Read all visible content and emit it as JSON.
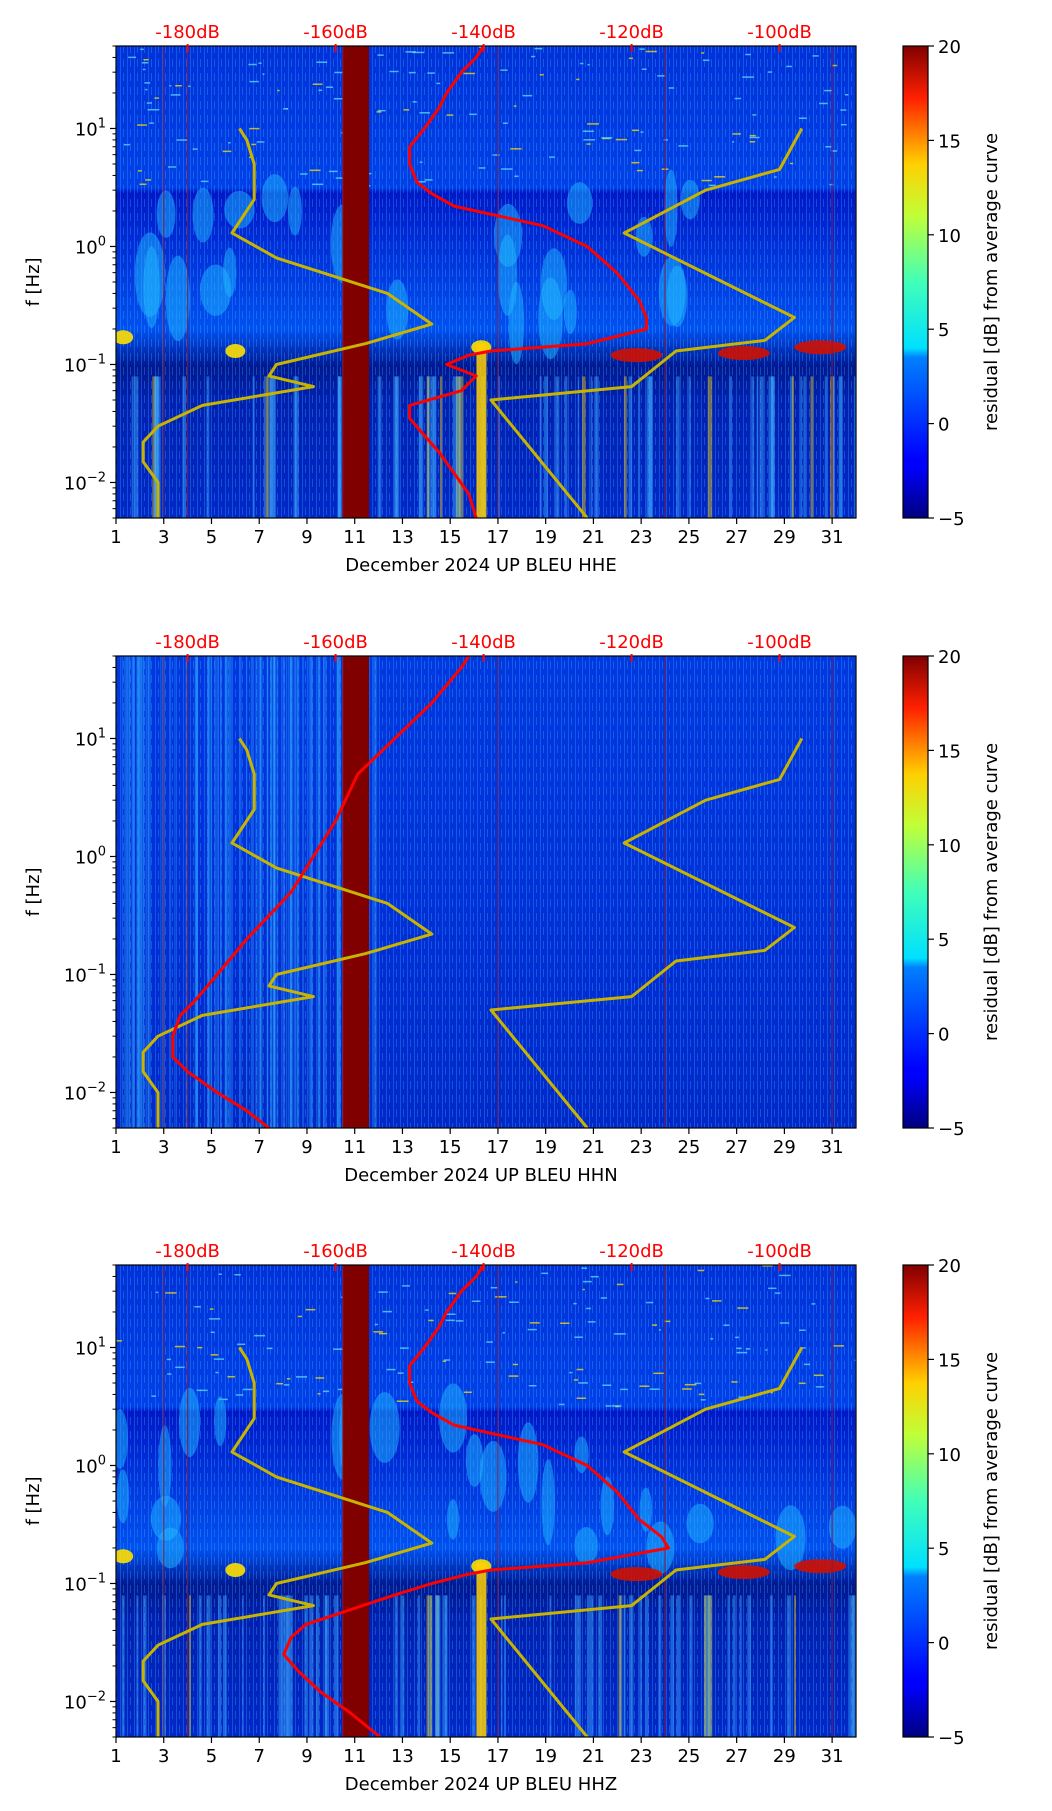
{
  "chart_data": [
    {
      "type": "heatmap",
      "xlabel": "December 2024 UP BLEU  HHE",
      "ylabel": "f [Hz]",
      "x_ticks": [
        "1",
        "3",
        "5",
        "7",
        "9",
        "11",
        "13",
        "15",
        "17",
        "19",
        "21",
        "23",
        "25",
        "27",
        "29",
        "31"
      ],
      "y_ticks": [
        "10^-2",
        "10^-1",
        "10^0",
        "10^1"
      ],
      "top_ticks": [
        "-180dB",
        "-160dB",
        "-140dB",
        "-120dB",
        "-100dB"
      ],
      "colorbar_label": "residual [dB] from average curve",
      "colorbar_ticks": [
        "−5",
        "0",
        "5",
        "10",
        "15",
        "20"
      ],
      "clim": [
        -5,
        20
      ],
      "ylim_hz": [
        0.005,
        50
      ],
      "xlim_days": [
        1,
        32
      ],
      "gap_days": [
        10.5,
        11.6
      ],
      "psd_curve": {
        "color": "#ff0000",
        "freq": [
          50,
          40,
          30,
          20,
          15,
          10,
          7,
          5,
          3.5,
          2.8,
          2.2,
          1.5,
          1.0,
          0.6,
          0.35,
          0.25,
          0.2,
          0.15,
          0.13,
          0.12,
          0.1,
          0.08,
          0.06,
          0.045,
          0.035,
          0.025,
          0.018,
          0.012,
          0.008,
          0.005
        ],
        "db": [
          -140,
          -141,
          -143,
          -145,
          -146,
          -148,
          -150,
          -150,
          -149,
          -147,
          -144,
          -132,
          -126,
          -122,
          -119,
          -118,
          -118,
          -126,
          -139,
          -142,
          -145,
          -141,
          -143,
          -150,
          -150,
          -148,
          -146,
          -144,
          -142,
          -141
        ]
      },
      "nlnm_curve": {
        "color": "#c8b400",
        "freq": [
          10,
          8,
          5,
          3.5,
          2.5,
          1.3,
          0.8,
          0.4,
          0.22,
          0.15,
          0.1,
          0.08,
          0.065,
          0.045,
          0.03,
          0.022,
          0.015,
          0.01,
          0.007,
          0.005
        ],
        "db": [
          -173,
          -172,
          -171,
          -171,
          -171,
          -174,
          -168,
          -153,
          -147,
          -156,
          -168,
          -169,
          -163,
          -178,
          -184,
          -186,
          -186,
          -184,
          -184,
          -184
        ]
      },
      "nhnm_curve": {
        "color": "#c8b400",
        "freq": [
          10,
          4.5,
          3.0,
          1.3,
          0.25,
          0.16,
          0.13,
          0.065,
          0.05,
          0.005
        ],
        "db": [
          -97,
          -100,
          -110,
          -121,
          -98,
          -102,
          -114,
          -120,
          -139,
          -126
        ]
      }
    },
    {
      "type": "heatmap",
      "xlabel": "December 2024 UP BLEU  HHN",
      "ylabel": "f [Hz]",
      "x_ticks": [
        "1",
        "3",
        "5",
        "7",
        "9",
        "11",
        "13",
        "15",
        "17",
        "19",
        "21",
        "23",
        "25",
        "27",
        "29",
        "31"
      ],
      "y_ticks": [
        "10^-2",
        "10^-1",
        "10^0",
        "10^1"
      ],
      "top_ticks": [
        "-180dB",
        "-160dB",
        "-140dB",
        "-120dB",
        "-100dB"
      ],
      "colorbar_label": "residual [dB] from average curve",
      "colorbar_ticks": [
        "−5",
        "0",
        "5",
        "10",
        "15",
        "20"
      ],
      "clim": [
        -5,
        20
      ],
      "ylim_hz": [
        0.005,
        50
      ],
      "xlim_days": [
        1,
        32
      ],
      "gap_days": [
        10.5,
        11.6
      ],
      "psd_curve": {
        "color": "#ff0000",
        "freq": [
          50,
          40,
          20,
          10,
          5,
          2,
          1,
          0.5,
          0.2,
          0.1,
          0.06,
          0.045,
          0.03,
          0.02,
          0.015,
          0.01,
          0.007,
          0.005
        ],
        "db": [
          -142,
          -143,
          -147,
          -152,
          -157,
          -160,
          -163,
          -166,
          -172,
          -176,
          -179,
          -181,
          -182,
          -182,
          -180,
          -176,
          -172,
          -169
        ]
      },
      "nlnm_curve": {
        "color": "#c8b400",
        "freq": [
          10,
          8,
          5,
          3.5,
          2.5,
          1.3,
          0.8,
          0.4,
          0.22,
          0.15,
          0.1,
          0.08,
          0.065,
          0.045,
          0.03,
          0.022,
          0.015,
          0.01,
          0.007,
          0.005
        ],
        "db": [
          -173,
          -172,
          -171,
          -171,
          -171,
          -174,
          -168,
          -153,
          -147,
          -156,
          -168,
          -169,
          -163,
          -178,
          -184,
          -186,
          -186,
          -184,
          -184,
          -184
        ]
      },
      "nhnm_curve": {
        "color": "#c8b400",
        "freq": [
          10,
          4.5,
          3.0,
          1.3,
          0.25,
          0.16,
          0.13,
          0.065,
          0.05,
          0.005
        ],
        "db": [
          -97,
          -100,
          -110,
          -121,
          -98,
          -102,
          -114,
          -120,
          -139,
          -126
        ]
      }
    },
    {
      "type": "heatmap",
      "xlabel": "December 2024 UP BLEU  HHZ",
      "ylabel": "f [Hz]",
      "x_ticks": [
        "1",
        "3",
        "5",
        "7",
        "9",
        "11",
        "13",
        "15",
        "17",
        "19",
        "21",
        "23",
        "25",
        "27",
        "29",
        "31"
      ],
      "y_ticks": [
        "10^-2",
        "10^-1",
        "10^0",
        "10^1"
      ],
      "top_ticks": [
        "-180dB",
        "-160dB",
        "-140dB",
        "-120dB",
        "-100dB"
      ],
      "colorbar_label": "residual [dB] from average curve",
      "colorbar_ticks": [
        "−5",
        "0",
        "5",
        "10",
        "15",
        "20"
      ],
      "clim": [
        -5,
        20
      ],
      "ylim_hz": [
        0.005,
        50
      ],
      "xlim_days": [
        1,
        32
      ],
      "gap_days": [
        10.5,
        11.6
      ],
      "psd_curve": {
        "color": "#ff0000",
        "freq": [
          50,
          40,
          30,
          20,
          15,
          10,
          7,
          5,
          3.5,
          2.8,
          2.2,
          1.5,
          1.0,
          0.6,
          0.35,
          0.25,
          0.2,
          0.15,
          0.13,
          0.12,
          0.1,
          0.08,
          0.06,
          0.045,
          0.035,
          0.025,
          0.018,
          0.012,
          0.008,
          0.005
        ],
        "db": [
          -140,
          -141,
          -143,
          -145,
          -146,
          -148,
          -150,
          -150,
          -149,
          -147,
          -144,
          -132,
          -126,
          -122,
          -119,
          -116,
          -115,
          -126,
          -139,
          -142,
          -147,
          -152,
          -158,
          -164,
          -166,
          -167,
          -165,
          -162,
          -158,
          -154
        ]
      },
      "nlnm_curve": {
        "color": "#c8b400",
        "freq": [
          10,
          8,
          5,
          3.5,
          2.5,
          1.3,
          0.8,
          0.4,
          0.22,
          0.15,
          0.1,
          0.08,
          0.065,
          0.045,
          0.03,
          0.022,
          0.015,
          0.01,
          0.007,
          0.005
        ],
        "db": [
          -173,
          -172,
          -171,
          -171,
          -171,
          -174,
          -168,
          -153,
          -147,
          -156,
          -168,
          -169,
          -163,
          -178,
          -184,
          -186,
          -186,
          -184,
          -184,
          -184
        ]
      },
      "nhnm_curve": {
        "color": "#c8b400",
        "freq": [
          10,
          4.5,
          3.0,
          1.3,
          0.25,
          0.16,
          0.13,
          0.065,
          0.05,
          0.005
        ],
        "db": [
          -97,
          -100,
          -110,
          -121,
          -98,
          -102,
          -114,
          -120,
          -139,
          -126
        ]
      }
    }
  ]
}
